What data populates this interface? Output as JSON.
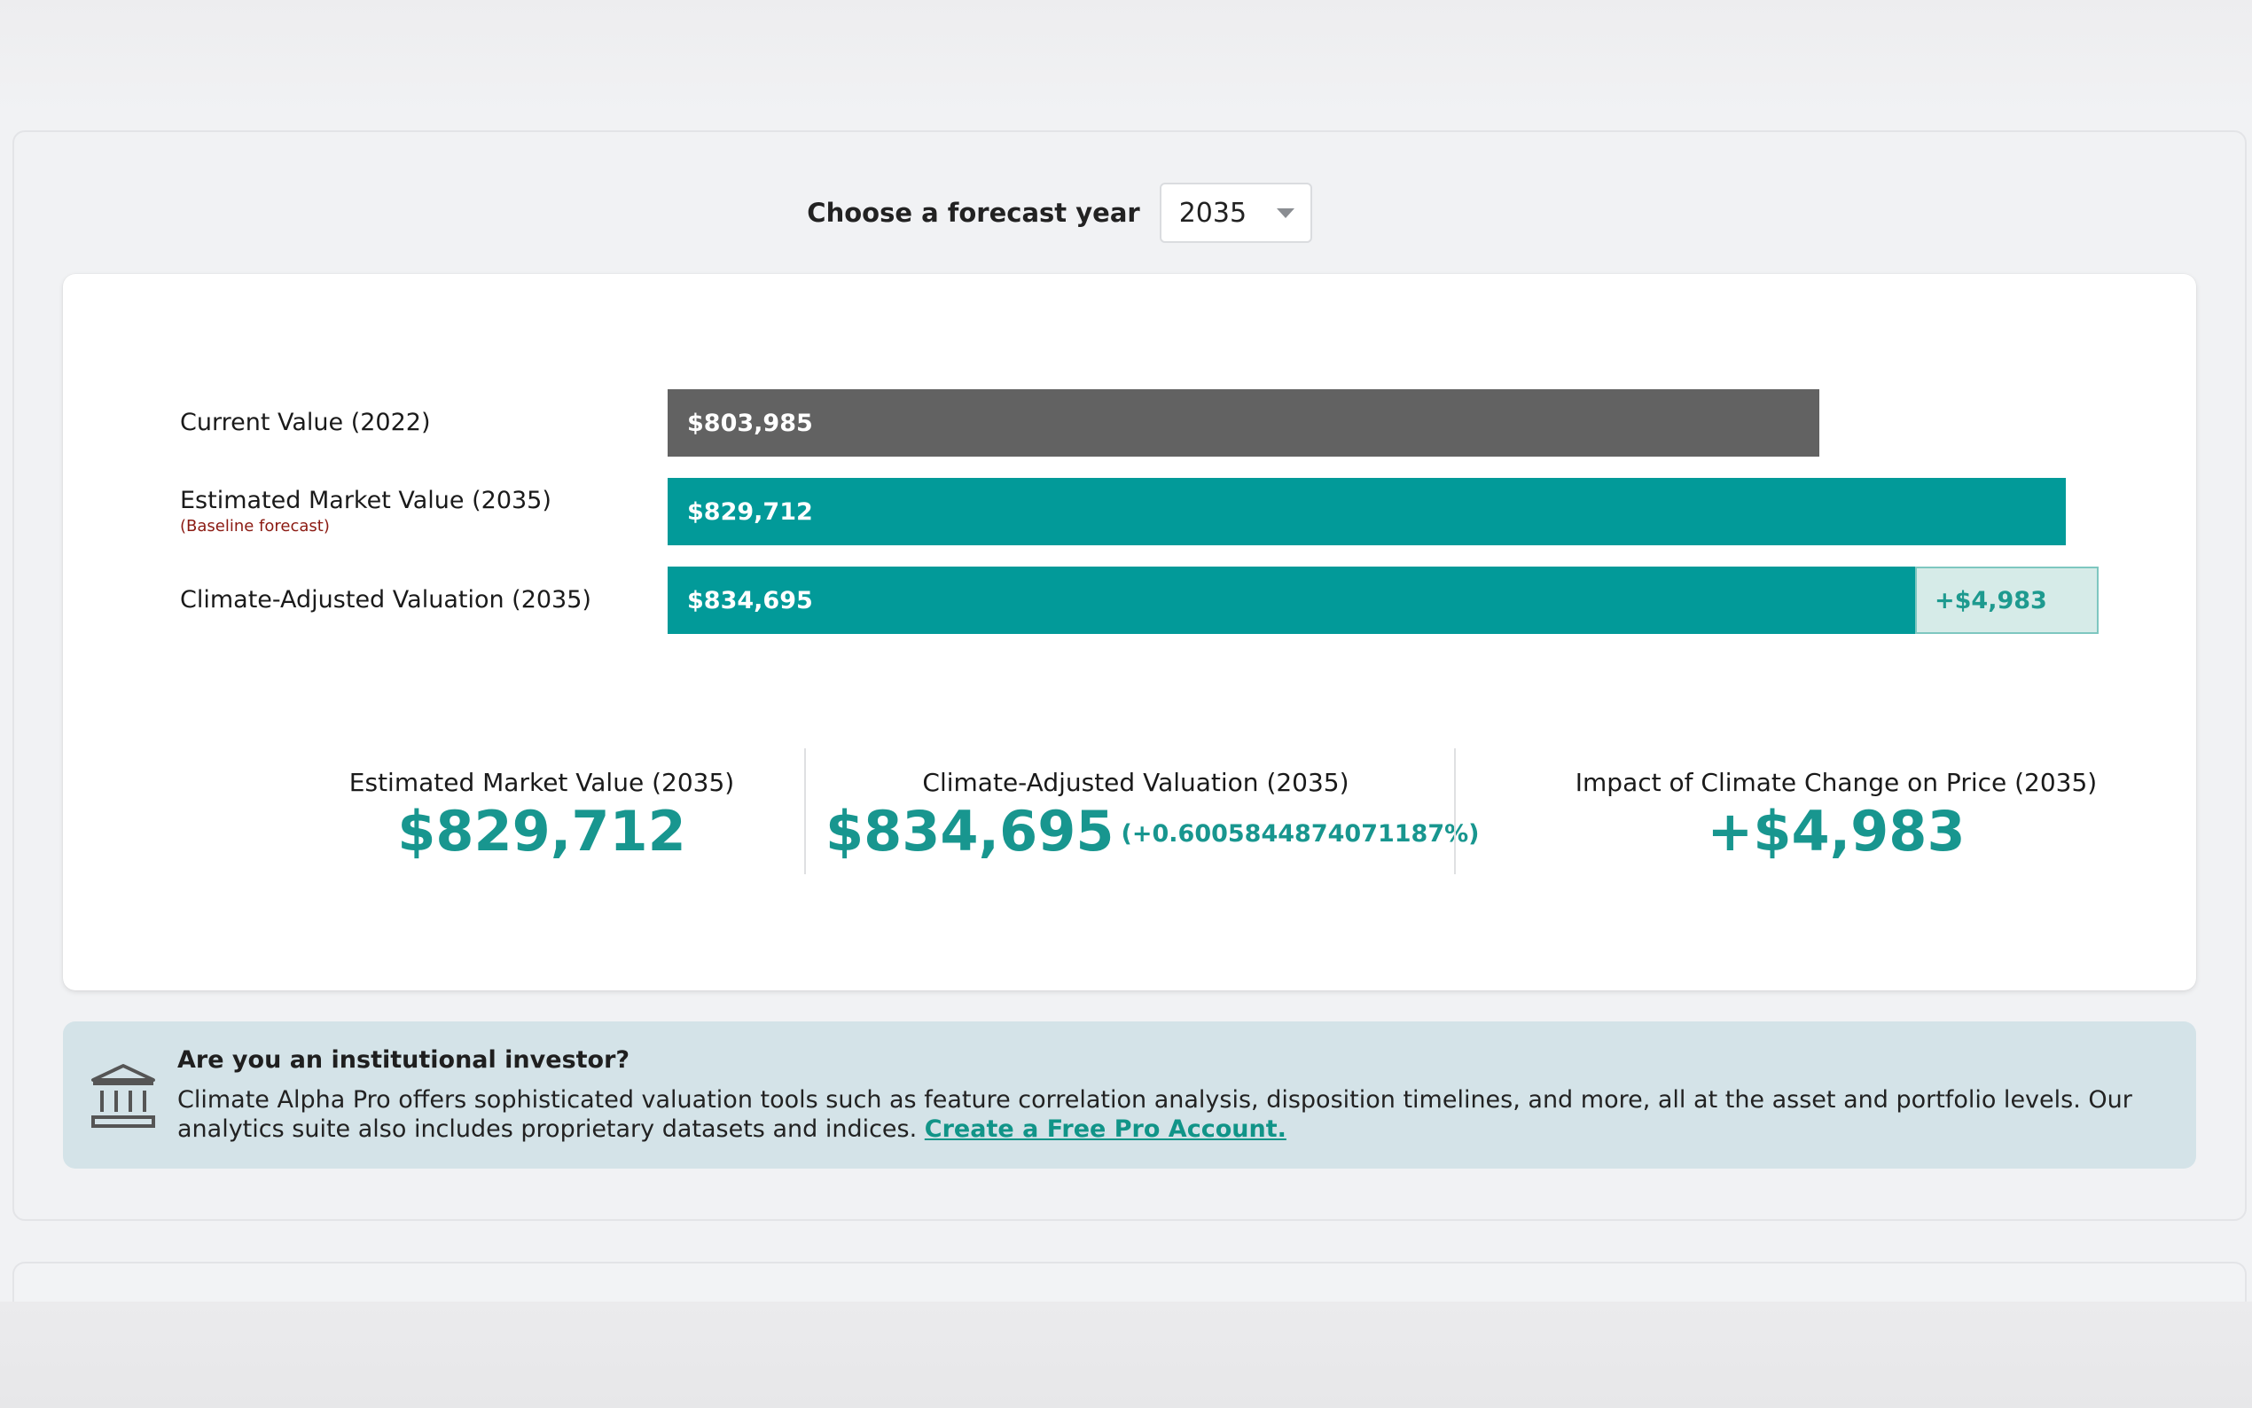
{
  "forecast": {
    "label": "Choose a forecast year",
    "selected_year": "2035"
  },
  "chart_data": {
    "type": "bar",
    "orientation": "horizontal",
    "categories": [
      "Current Value (2022)",
      "Estimated Market Value (2035)",
      "Climate-Adjusted Valuation (2035)"
    ],
    "category_notes": [
      "",
      "(Baseline forecast)",
      ""
    ],
    "values": [
      803985,
      829712,
      834695
    ],
    "value_labels": [
      "$803,985",
      "$829,712",
      "$834,695"
    ],
    "bar_colors": [
      "#626262",
      "#029a99",
      "#029a99"
    ],
    "delta": {
      "value": 4983,
      "label": "+$4,983",
      "color": "#d6ebe8"
    },
    "legend": "none",
    "grid": false
  },
  "stats": [
    {
      "title": "Estimated Market Value (2035)",
      "value": "$829,712",
      "pct": ""
    },
    {
      "title": "Climate-Adjusted Valuation (2035)",
      "value": "$834,695",
      "pct": "(+0.6005844874071187%)"
    },
    {
      "title": "Impact of Climate Change on Price (2035)",
      "value": "+$4,983",
      "pct": ""
    }
  ],
  "promo": {
    "icon": "institution-icon",
    "title": "Are you an institutional investor?",
    "text": "Climate Alpha Pro offers sophisticated valuation tools such as feature correlation analysis, disposition timelines, and more, all at the asset and portfolio levels. Our analytics suite also includes proprietary datasets and indices.",
    "link_text": "Create a Free Pro Account."
  },
  "colors": {
    "accent_teal": "#029a99",
    "stat_teal": "#18968f",
    "current_gray": "#626262",
    "note_red": "#8b1a12",
    "promo_bg": "#d4e3e8"
  }
}
